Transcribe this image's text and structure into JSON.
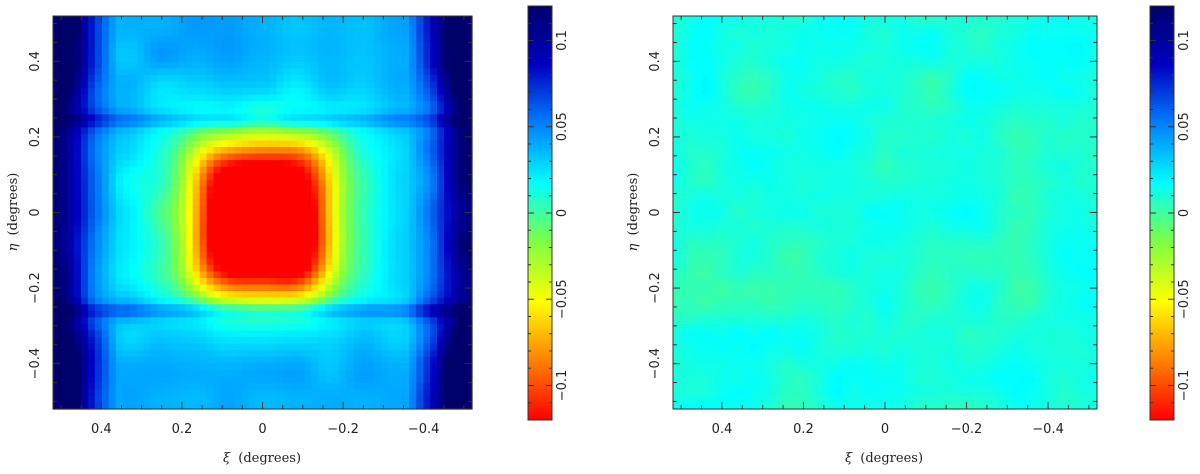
{
  "chart_data": [
    {
      "type": "heatmap",
      "title": "",
      "xlabel_symbol": "ξ",
      "xlabel_unit": "(degrees)",
      "ylabel_symbol": "η",
      "ylabel_unit": "(degrees)",
      "xlim": [
        0.52,
        -0.52
      ],
      "ylim": [
        -0.52,
        0.52
      ],
      "x_ticks": [
        0.4,
        0.2,
        0,
        -0.2,
        -0.4
      ],
      "x_tick_labels": [
        "0.4",
        "0.2",
        "0",
        "−0.2",
        "−0.4"
      ],
      "y_ticks": [
        -0.4,
        -0.2,
        0,
        0.2,
        0.4
      ],
      "y_tick_labels": [
        "−0.4",
        "−0.2",
        "0",
        "0.2",
        "0.4"
      ],
      "colorbar": {
        "range": [
          -0.12,
          0.12
        ],
        "ticks": [
          -0.1,
          -0.05,
          0,
          0.05,
          0.1
        ],
        "tick_labels": [
          "−0.1",
          "−0.05",
          "0",
          "0.05",
          "0.1"
        ],
        "colormap": [
          "#ff0000",
          "#ff8000",
          "#ffff00",
          "#80ff40",
          "#00ffff",
          "#0080ff",
          "#0000c0",
          "#00006a"
        ]
      },
      "field": {
        "description_values": "systematic pattern: strongly negative core (~-0.10) centered near xi=0, eta=-0.05, positive corners (~+0.10), bands at eta=+0.24 and eta=-0.26",
        "core_min": -0.1,
        "corner_max": 0.1,
        "background": 0.04
      }
    },
    {
      "type": "heatmap",
      "title": "",
      "xlabel_symbol": "ξ",
      "xlabel_unit": "(degrees)",
      "ylabel_symbol": "η",
      "ylabel_unit": "(degrees)",
      "xlim": [
        0.52,
        -0.52
      ],
      "ylim": [
        -0.52,
        0.52
      ],
      "x_ticks": [
        0.4,
        0.2,
        0,
        -0.2,
        -0.4
      ],
      "x_tick_labels": [
        "0.4",
        "0.2",
        "0",
        "−0.2",
        "−0.4"
      ],
      "y_ticks": [
        -0.4,
        -0.2,
        0,
        0.2,
        0.4
      ],
      "y_tick_labels": [
        "−0.4",
        "−0.2",
        "0",
        "0.2",
        "0.4"
      ],
      "colorbar": {
        "range": [
          -0.12,
          0.12
        ],
        "ticks": [
          -0.1,
          -0.05,
          0,
          0.05,
          0.1
        ],
        "tick_labels": [
          "−0.1",
          "−0.05",
          "0",
          "0.05",
          "0.1"
        ],
        "colormap": [
          "#ff0000",
          "#ff8000",
          "#ffff00",
          "#80ff40",
          "#00ffff",
          "#0080ff",
          "#0000c0",
          "#00006a"
        ]
      },
      "field": {
        "description_values": "near-uniform residual field around 0 with small noise (~±0.01)",
        "mean": 0.0,
        "noise": 0.008
      }
    }
  ]
}
